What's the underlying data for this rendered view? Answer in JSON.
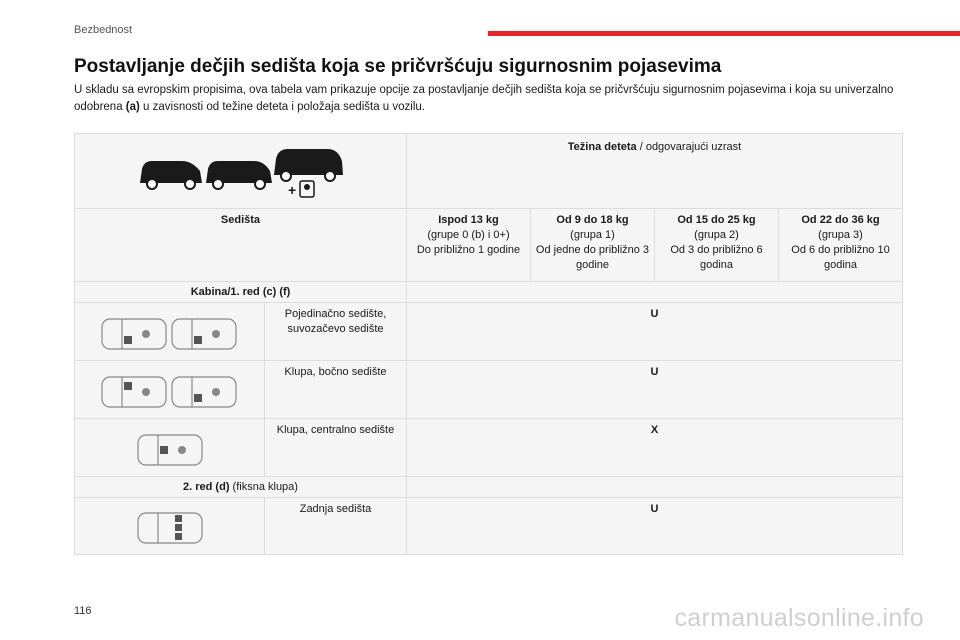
{
  "header": {
    "section": "Bezbednost",
    "page_number": "116"
  },
  "title": "Postavljanje dečjih sedišta koja se pričvršćuju sigurnosnim pojasevima",
  "intro": {
    "part1": "U skladu sa evropskim propisima, ova tabela vam prikazuje opcije za postavljanje dečjih sedišta koja se pričvršćuju sigurnosnim pojasevima i koja su univerzalno odobrena ",
    "bold": "(a)",
    "part2": " u zavisnosti od težine deteta i položaja sedišta u vozilu."
  },
  "table": {
    "weight_header": {
      "bold": "Težina deteta",
      "rest": " / odgovarajući uzrast"
    },
    "seats_label": "Sedišta",
    "groups": [
      {
        "weight": "Ispod 13 kg",
        "group": "(grupe 0 (b) i 0+)",
        "age": "Do približno 1 godine"
      },
      {
        "weight": "Od 9 do 18 kg",
        "group": "(grupa 1)",
        "age": "Od jedne do približno 3 godine"
      },
      {
        "weight": "Od 15 do 25 kg",
        "group": "(grupa 2)",
        "age": "Od 3 do približno 6 godina"
      },
      {
        "weight": "Od 22 do 36 kg",
        "group": "(grupa 3)",
        "age": "Od 6 do približno 10 godina"
      }
    ],
    "section_cabin": "Kabina/1. red (c) (f)",
    "section_row2": {
      "bold": "2. red (d)",
      "rest": " (fiksna klupa)"
    },
    "rows": [
      {
        "label": "Pojedinačno sedište, suvozačevo sedište",
        "value": "U"
      },
      {
        "label": "Klupa, bočno sedište",
        "value": "U"
      },
      {
        "label": "Klupa, centralno sedište",
        "value": "X"
      },
      {
        "label": "Zadnja sedišta",
        "value": "U"
      }
    ]
  },
  "watermark": "carmanualsonline.info",
  "colors": {
    "accent": "#e4252b",
    "cell_bg": "#f5f5f5",
    "border": "#dcdcdc"
  }
}
